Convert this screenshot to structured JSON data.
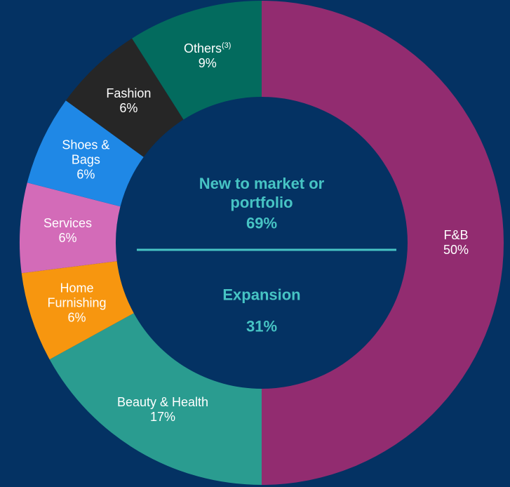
{
  "chart_data": {
    "type": "donut",
    "categories": [
      "F&B",
      "Beauty & Health",
      "Home Furnishing",
      "Services",
      "Shoes & Bags",
      "Fashion",
      "Others"
    ],
    "values": [
      50,
      17,
      6,
      6,
      6,
      6,
      9
    ],
    "value_labels": [
      "50%",
      "17%",
      "6%",
      "6%",
      "6%",
      "6%",
      "9%"
    ],
    "colors": [
      "#922c70",
      "#2a9c90",
      "#f7960f",
      "#d36bb8",
      "#1f88e6",
      "#262626",
      "#036b5e"
    ],
    "annotations": [
      {
        "category": 6,
        "text": "(3)"
      }
    ],
    "center": [
      {
        "label": "New to market or portfolio",
        "value": 69,
        "value_label": "69%"
      },
      {
        "label": "Expansion",
        "value": 31,
        "value_label": "31%"
      }
    ],
    "center_color": "#47c4c4"
  }
}
